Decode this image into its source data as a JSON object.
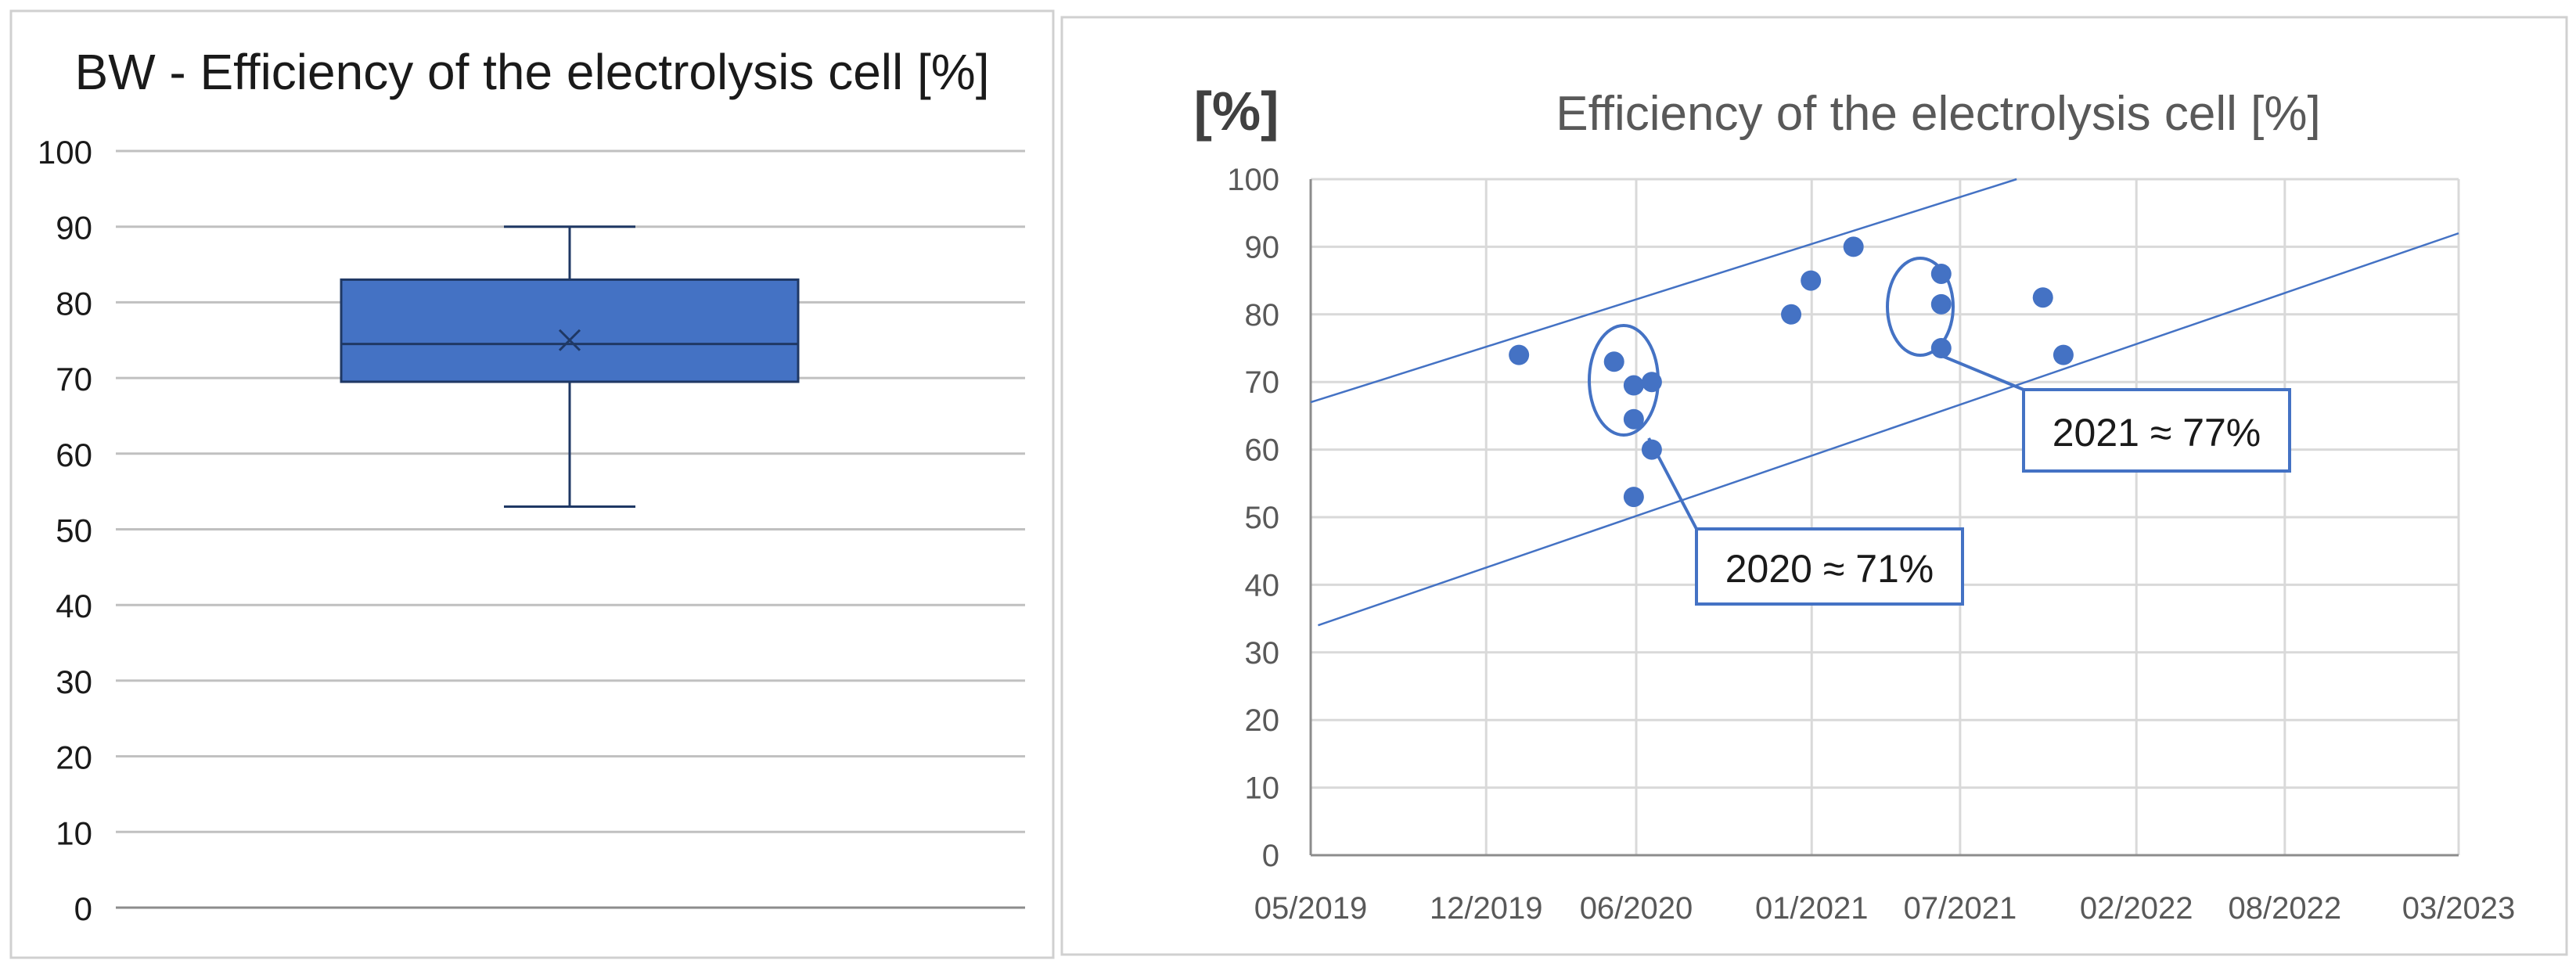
{
  "chart_data": [
    {
      "type": "box",
      "title": "BW - Efficiency of the electrolysis cell [%]",
      "xlabel": "",
      "ylabel": "",
      "ylim": [
        0,
        100
      ],
      "yticks": [
        0,
        10,
        20,
        30,
        40,
        50,
        60,
        70,
        80,
        90,
        100
      ],
      "grid": true,
      "legend": "none",
      "box": {
        "min": 53,
        "q1": 69.5,
        "median": 74.5,
        "mean": 75,
        "q3": 83,
        "max": 90
      },
      "colors": {
        "fill": "#4472c4",
        "stroke": "#1f3864",
        "grid": "#c0c0c0",
        "axis": "#8c8c8c",
        "text": "#1a1a1a"
      }
    },
    {
      "type": "scatter",
      "title": "Efficiency of the electrolysis cell [%]",
      "ylabel": "[%]",
      "xlabel": "",
      "xlim": [
        "2019-05-01",
        "2023-03-01"
      ],
      "ylim": [
        0,
        100
      ],
      "xticks": [
        "05/2019",
        "12/2019",
        "06/2020",
        "01/2021",
        "07/2021",
        "02/2022",
        "08/2022",
        "03/2023"
      ],
      "xtick_dates": [
        "2019-05-01",
        "2019-12-01",
        "2020-06-01",
        "2021-01-01",
        "2021-07-01",
        "2022-02-01",
        "2022-08-01",
        "2023-03-01"
      ],
      "yticks": [
        0,
        10,
        20,
        30,
        40,
        50,
        60,
        70,
        80,
        90,
        100
      ],
      "grid": true,
      "legend": "none",
      "points": [
        {
          "x": "2020-01-10",
          "y": 74
        },
        {
          "x": "2020-05-05",
          "y": 73
        },
        {
          "x": "2020-05-29",
          "y": 69.5
        },
        {
          "x": "2020-05-29",
          "y": 64.5
        },
        {
          "x": "2020-05-29",
          "y": 53
        },
        {
          "x": "2020-06-20",
          "y": 70
        },
        {
          "x": "2020-06-20",
          "y": 60
        },
        {
          "x": "2020-12-07",
          "y": 80
        },
        {
          "x": "2020-12-31",
          "y": 85
        },
        {
          "x": "2021-02-21",
          "y": 90
        },
        {
          "x": "2021-06-08",
          "y": 86
        },
        {
          "x": "2021-06-08",
          "y": 81.5
        },
        {
          "x": "2021-06-08",
          "y": 75
        },
        {
          "x": "2021-10-10",
          "y": 82.5
        },
        {
          "x": "2021-11-04",
          "y": 74
        }
      ],
      "trend_lines": [
        {
          "from": {
            "x": "2019-05-01",
            "y": 67
          },
          "to": {
            "x": "2021-09-08",
            "y": 100
          }
        },
        {
          "from": {
            "x": "2019-05-10",
            "y": 34
          },
          "to": {
            "x": "2023-03-01",
            "y": 92
          }
        }
      ],
      "annotations": [
        {
          "text": "2020 ≈ 71%"
        },
        {
          "text": "2021 ≈ 77%"
        }
      ],
      "colors": {
        "points": "#4472c4",
        "trend": "#4472c4",
        "grid": "#d9d9d9",
        "axis": "#8c8c8c",
        "tick_text": "#595959",
        "title": "#595959",
        "ylabel": "#404040",
        "annotation_text": "#1a1a1a"
      }
    }
  ]
}
